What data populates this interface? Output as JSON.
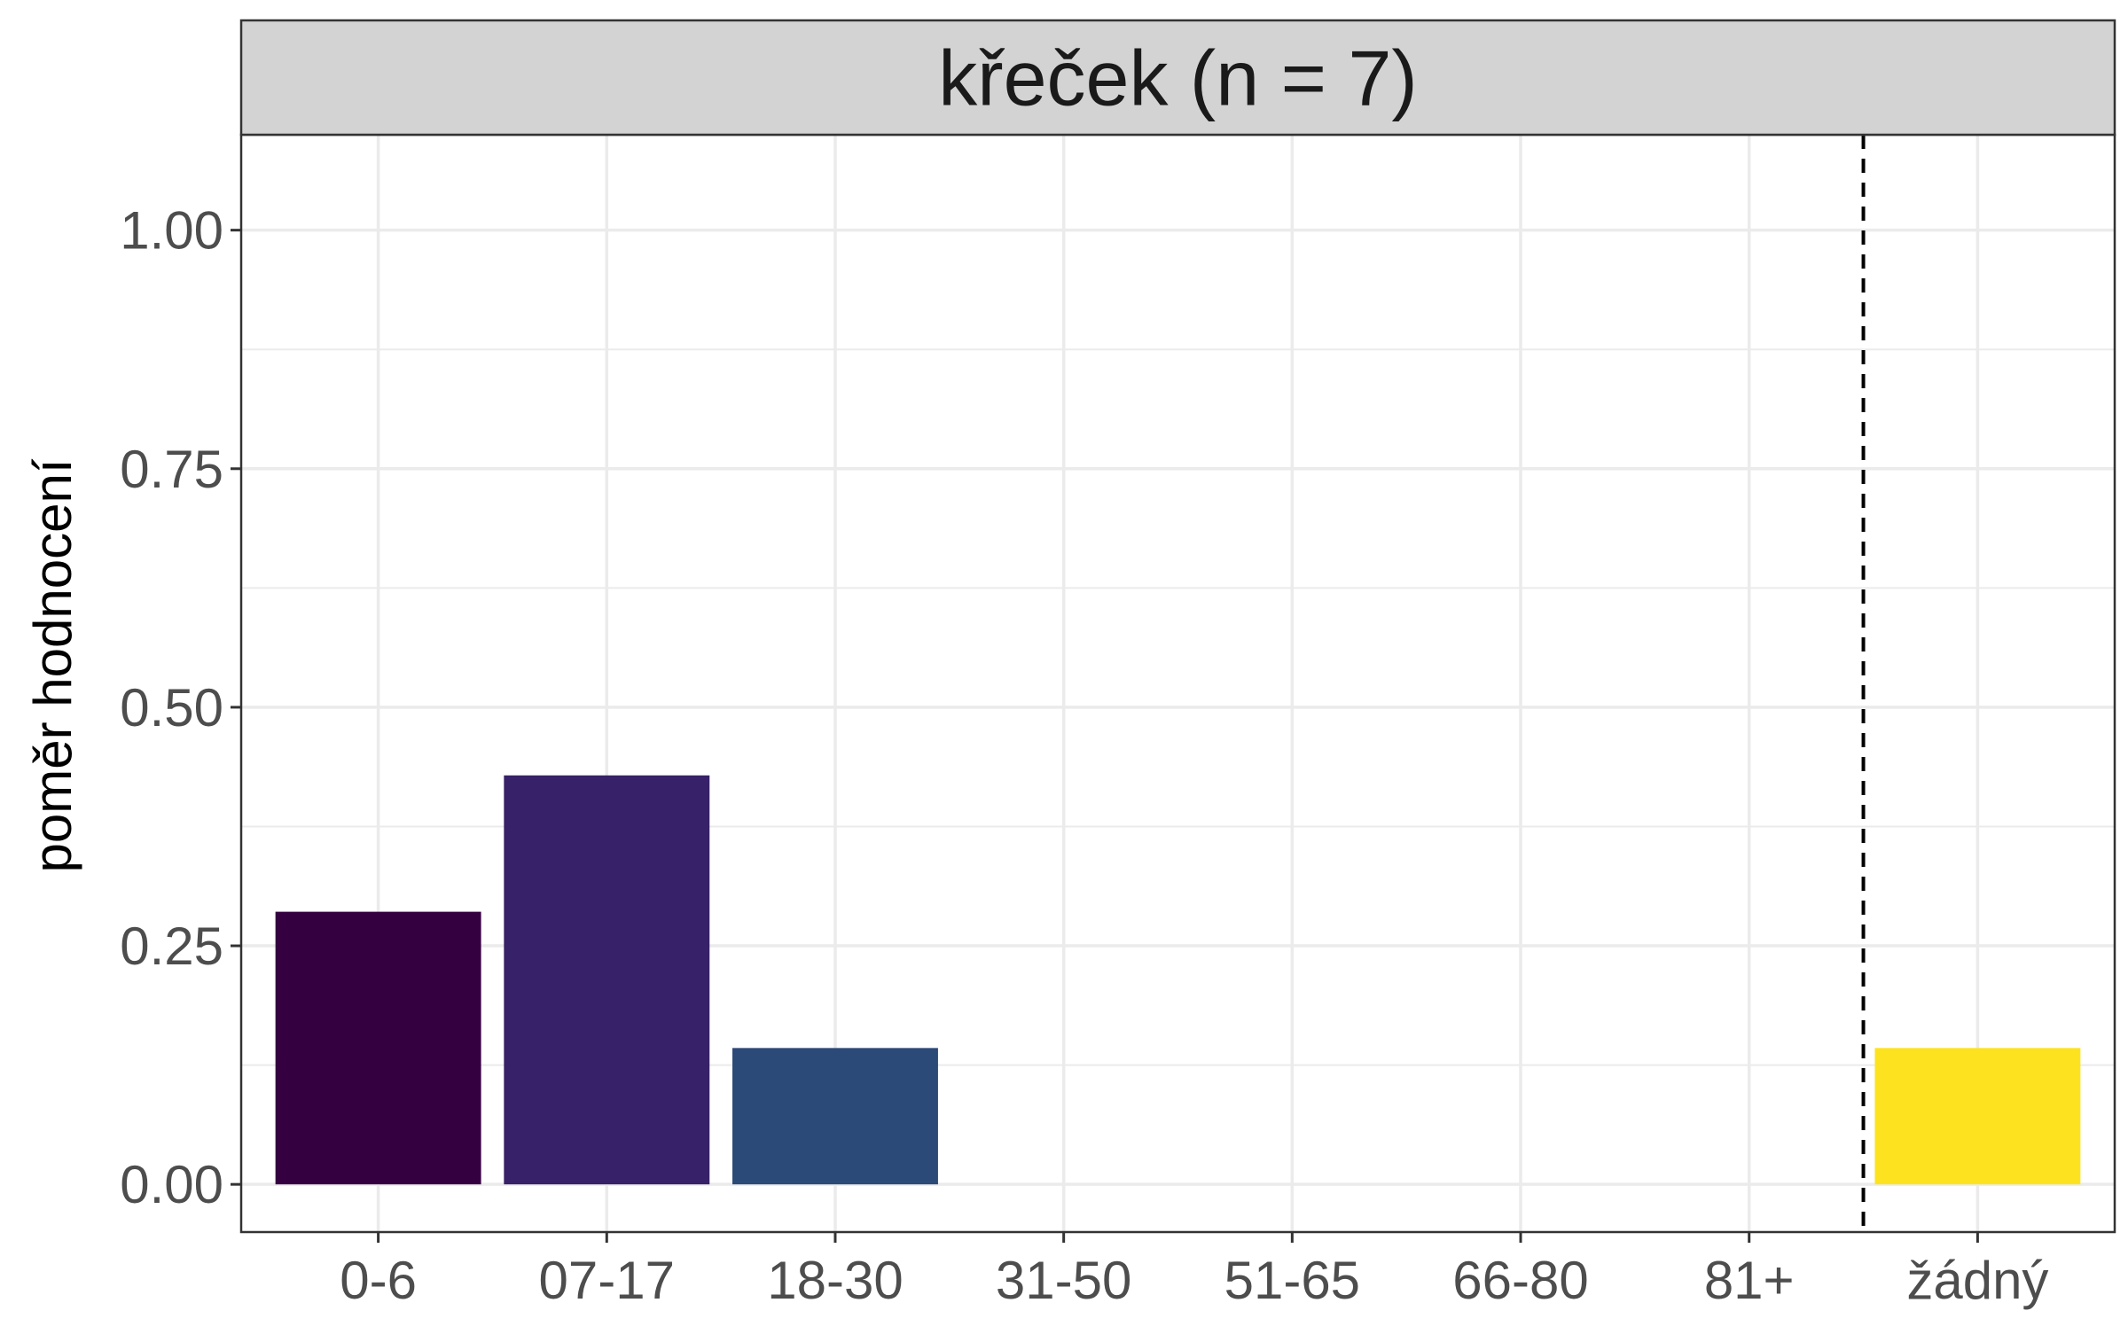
{
  "chart_data": {
    "type": "bar",
    "facet_title": "křeček (n = 7)",
    "xlabel": "",
    "ylabel": "poměr hodnocení",
    "categories": [
      "0-6",
      "07-17",
      "18-30",
      "31-50",
      "51-65",
      "66-80",
      "81+",
      "žádný"
    ],
    "values": [
      0.2857,
      0.4286,
      0.1429,
      0,
      0,
      0,
      0,
      0.1429
    ],
    "colors": [
      "#350040",
      "#372168",
      "#2C4A78",
      "#23688D",
      "#1F868E",
      "#2AA57F",
      "#74C45A",
      "#FDE31F"
    ],
    "ylim": [
      -0.05,
      1.1
    ],
    "yticks": [
      0,
      0.25,
      0.5,
      0.75,
      1
    ],
    "ytick_labels": [
      "0.00",
      "0.25",
      "0.50",
      "0.75",
      "1.00"
    ],
    "reference_line": {
      "between": [
        "81+",
        "žádný"
      ],
      "style": "dashed",
      "color": "#000000"
    },
    "grid": true,
    "strip_color": "#D3D3D3"
  }
}
